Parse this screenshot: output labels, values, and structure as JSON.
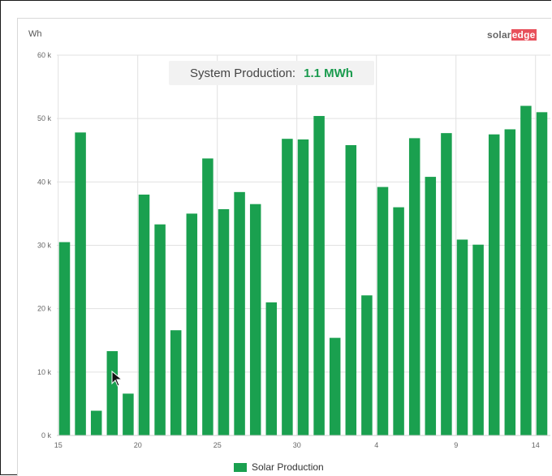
{
  "header": {
    "unit_label": "Wh",
    "brand_part1": "solar",
    "brand_part2": "edge"
  },
  "tooltip": {
    "label": "System Production:",
    "value": "1.1 MWh"
  },
  "colors": {
    "bar": "#1aa04f",
    "grid": "#e1e1e1",
    "accent": "#1a9b4e",
    "brand_red": "#e8505b"
  },
  "chart_data": {
    "type": "bar",
    "x_tick_labels": [
      "15",
      "20",
      "25",
      "30",
      "4",
      "9",
      "14"
    ],
    "x_tick_indices": [
      0,
      5,
      10,
      15,
      20,
      25,
      30
    ],
    "categories": [
      "15",
      "16",
      "17",
      "18",
      "19",
      "20",
      "21",
      "22",
      "23",
      "24",
      "25",
      "26",
      "27",
      "28",
      "29",
      "30",
      "31",
      "1",
      "2",
      "3",
      "4",
      "5",
      "6",
      "7",
      "8",
      "9",
      "10",
      "11",
      "12",
      "13",
      "14"
    ],
    "series": [
      {
        "name": "Solar Production",
        "values": [
          30500,
          47800,
          3900,
          13300,
          6600,
          38000,
          33300,
          16600,
          35000,
          43700,
          35700,
          38400,
          36500,
          21000,
          46800,
          46700,
          50400,
          15400,
          45800,
          22100,
          39200,
          36000,
          46900,
          40800,
          47700,
          30900,
          30100,
          47500,
          48300,
          52000,
          51000
        ]
      }
    ],
    "y_ticks": [
      0,
      10000,
      20000,
      30000,
      40000,
      50000,
      60000
    ],
    "y_tick_labels": [
      "0 k",
      "10 k",
      "20 k",
      "30 k",
      "40 k",
      "50 k",
      "60 k"
    ],
    "ylim": [
      0,
      60000
    ],
    "ylabel": "Wh",
    "grid": true,
    "legend": "bottom-center"
  }
}
